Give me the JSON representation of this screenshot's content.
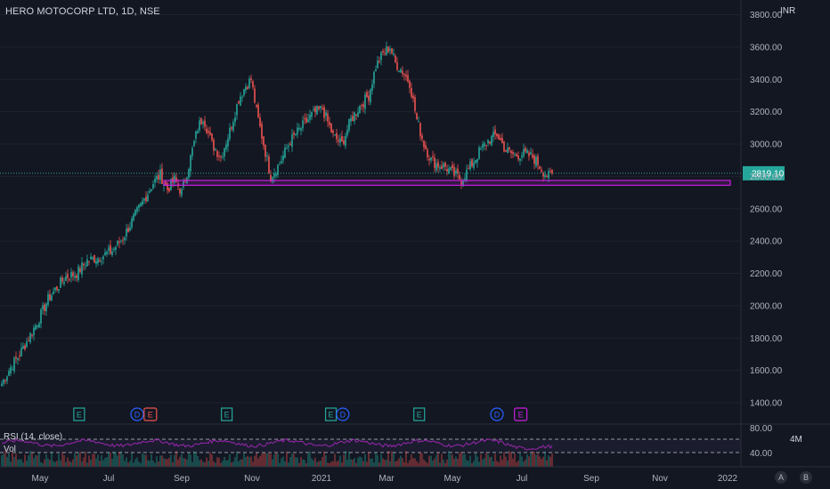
{
  "header": {
    "symbol_title": "HERO MOTOCORP LTD, 1D, NSE",
    "currency": "INR"
  },
  "indicators": {
    "rsi_label": "RSI (14, close)",
    "vol_label": "Vol",
    "vol_axis_label": "4M"
  },
  "axis_buttons": {
    "auto": "A",
    "settings": "B"
  },
  "colors": {
    "background": "#131722",
    "up": "#26a69a",
    "down": "#ef5350",
    "rsi_line": "#9c27b0",
    "support_box": "#c71fdc",
    "last_price": "#26a69a",
    "earnings": "#26a69a",
    "dividend": "#2962ff"
  },
  "chart_data": {
    "type": "candlestick",
    "y_ticks": [
      "1400.00",
      "1600.00",
      "1800.00",
      "2000.00",
      "2200.00",
      "2400.00",
      "2600.00",
      "2800.00",
      "3000.00",
      "3200.00",
      "3400.00",
      "3600.00",
      "3800.00"
    ],
    "y_range": [
      1330,
      3830
    ],
    "x_ticks": [
      "May",
      "Jul",
      "Sep",
      "Nov",
      "2021",
      "Mar",
      "May",
      "Jul",
      "Sep",
      "Nov",
      "2022"
    ],
    "last_price": "2819.10",
    "price_path": [
      [
        0,
        1520
      ],
      [
        5,
        1620
      ],
      [
        10,
        1700
      ],
      [
        15,
        1800
      ],
      [
        20,
        1900
      ],
      [
        26,
        2040
      ],
      [
        30,
        2100
      ],
      [
        36,
        2180
      ],
      [
        42,
        2200
      ],
      [
        48,
        2280
      ],
      [
        55,
        2300
      ],
      [
        62,
        2340
      ],
      [
        68,
        2420
      ],
      [
        75,
        2560
      ],
      [
        81,
        2680
      ],
      [
        85,
        2760
      ],
      [
        89,
        2810
      ],
      [
        93,
        2720
      ],
      [
        97,
        2780
      ],
      [
        101,
        2700
      ],
      [
        105,
        2870
      ],
      [
        110,
        3100
      ],
      [
        113,
        3170
      ],
      [
        118,
        3000
      ],
      [
        123,
        2920
      ],
      [
        128,
        3080
      ],
      [
        133,
        3280
      ],
      [
        137,
        3360
      ],
      [
        140,
        3400
      ],
      [
        143,
        3200
      ],
      [
        147,
        3000
      ],
      [
        151,
        2800
      ],
      [
        156,
        2880
      ],
      [
        162,
        3020
      ],
      [
        168,
        3100
      ],
      [
        174,
        3180
      ],
      [
        180,
        3220
      ],
      [
        186,
        3050
      ],
      [
        191,
        3000
      ],
      [
        196,
        3150
      ],
      [
        202,
        3250
      ],
      [
        206,
        3300
      ],
      [
        210,
        3480
      ],
      [
        214,
        3560
      ],
      [
        218,
        3600
      ],
      [
        221,
        3500
      ],
      [
        225,
        3450
      ],
      [
        229,
        3380
      ],
      [
        233,
        3150
      ],
      [
        237,
        3000
      ],
      [
        241,
        2900
      ],
      [
        245,
        2870
      ],
      [
        249,
        2860
      ],
      [
        253,
        2820
      ],
      [
        258,
        2780
      ],
      [
        263,
        2860
      ],
      [
        268,
        2950
      ],
      [
        273,
        3020
      ],
      [
        278,
        3060
      ],
      [
        283,
        2960
      ],
      [
        288,
        2930
      ],
      [
        293,
        2940
      ],
      [
        298,
        2920
      ],
      [
        301,
        2880
      ],
      [
        304,
        2830
      ],
      [
        307,
        2800
      ],
      [
        309,
        2819
      ]
    ],
    "bars_total": 320,
    "support_zone": {
      "start_index": 106,
      "end_index": 318,
      "low": 2745,
      "high": 2775
    },
    "event_markers": [
      {
        "label": "E",
        "kind": "earnings",
        "index": 56
      },
      {
        "label": "D",
        "kind": "dividend",
        "index": 100
      },
      {
        "label": "E",
        "kind": "earnings-red",
        "index": 110
      },
      {
        "label": "E",
        "kind": "earnings",
        "index": 168
      },
      {
        "label": "E",
        "kind": "earnings",
        "index": 247
      },
      {
        "label": "D",
        "kind": "dividend",
        "index": 256
      },
      {
        "label": "E",
        "kind": "earnings",
        "index": 314
      },
      {
        "label": "D",
        "kind": "dividend",
        "index": 373
      },
      {
        "label": "E",
        "kind": "earnings-purple",
        "index": 391
      }
    ],
    "rsi": {
      "ticks": [
        "80.00",
        "40.00"
      ],
      "levels": [
        70,
        30
      ]
    }
  }
}
